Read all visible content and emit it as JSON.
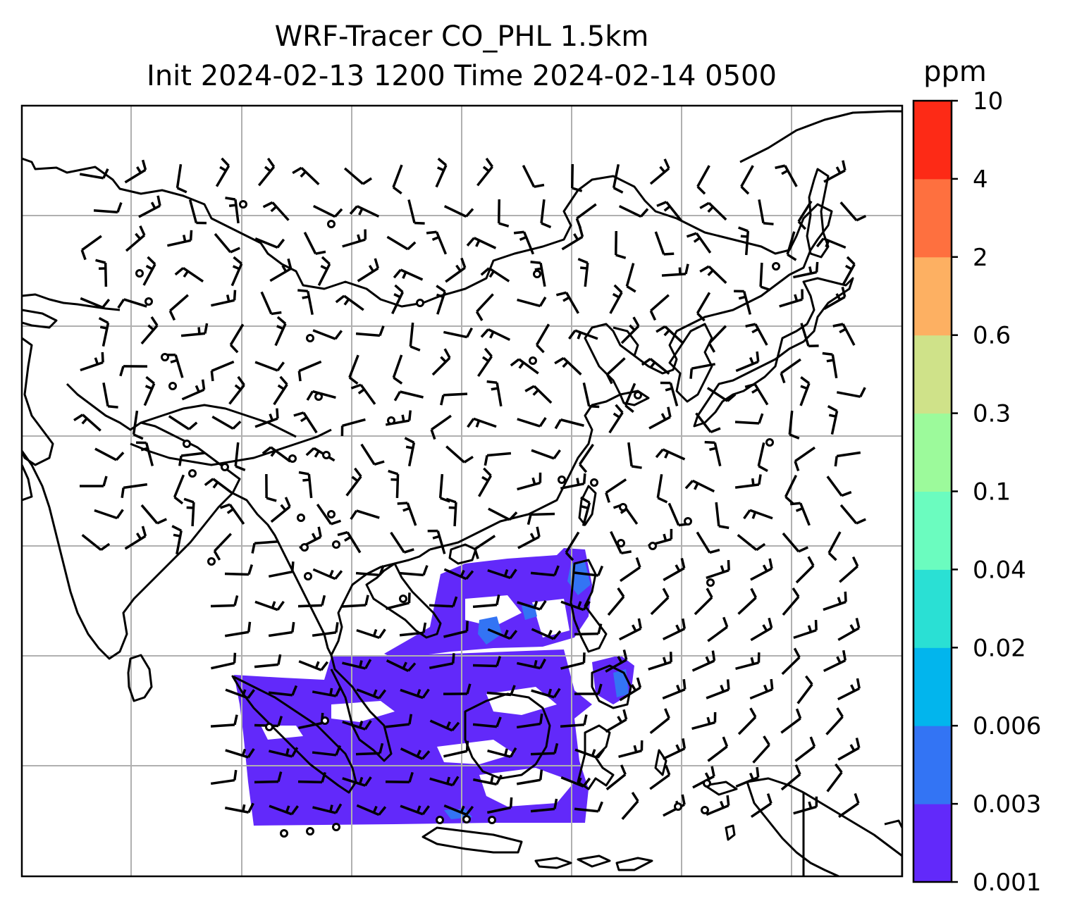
{
  "title": {
    "line1": "WRF-Tracer CO_PHL 1.5km",
    "line2": "Init 2024-02-13 1200 Time 2024-02-14 0500"
  },
  "colorbar": {
    "unit": "ppm",
    "levels": [
      "0.001",
      "0.003",
      "0.006",
      "0.02",
      "0.04",
      "0.1",
      "0.3",
      "0.6",
      "2",
      "4",
      "10"
    ],
    "colors": [
      "#6229fa",
      "#3374f4",
      "#02b5ed",
      "#2ae0d4",
      "#6bfcbf",
      "#9cfa9b",
      "#cfe289",
      "#fdb062",
      "#fe703f",
      "#fd2a16"
    ]
  },
  "map": {
    "frame_color": "#000000",
    "grid_color": "#b0b0b0",
    "tracer_color": "#6229fa",
    "tracer_highlight_color": "#3374f4"
  }
}
